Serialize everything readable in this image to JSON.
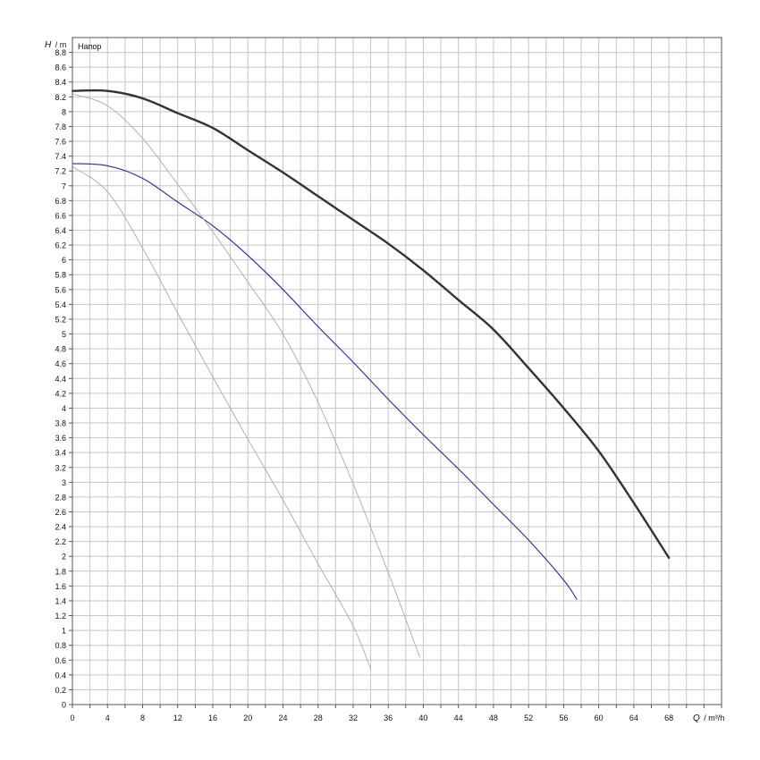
{
  "chart_data": {
    "type": "line",
    "title": "",
    "ylabel": {
      "symbol": "H",
      "unit": "/ m"
    },
    "xlabel": {
      "symbol": "Q",
      "unit": "/ m³/h"
    },
    "xlim": [
      0,
      74
    ],
    "ylim": [
      0,
      9.0
    ],
    "x_ticks": [
      0,
      4,
      8,
      12,
      16,
      20,
      24,
      28,
      32,
      36,
      40,
      44,
      48,
      52,
      56,
      60,
      64,
      68
    ],
    "x_tick_labels": [
      "0",
      "4",
      "8",
      "12",
      "16",
      "20",
      "24",
      "28",
      "32",
      "36",
      "40",
      "44",
      "48",
      "52",
      "56",
      "60",
      "64",
      "68"
    ],
    "x_minor_step": 2,
    "y_ticks": [
      0,
      0.2,
      0.4,
      0.6,
      0.8,
      1,
      1.2,
      1.4,
      1.6,
      1.8,
      2,
      2.2,
      2.4,
      2.6,
      2.8,
      3,
      3.2,
      3.4,
      3.6,
      3.8,
      4,
      4.2,
      4.4,
      4.6,
      4.8,
      5,
      5.2,
      5.4,
      5.6,
      5.8,
      6,
      6.2,
      6.4,
      6.6,
      6.8,
      7,
      7.2,
      7.4,
      7.6,
      7.8,
      8,
      8.2,
      8.4,
      8.6,
      8.8
    ],
    "y_tick_labels": [
      "0",
      "0.2",
      "0.4",
      "0.6",
      "0.8",
      "1",
      "1.2",
      "1.4",
      "1.6",
      "1.8",
      "2",
      "2.2",
      "2.4",
      "2.6",
      "2.8",
      "3",
      "3.2",
      "3.4",
      "3.6",
      "3.8",
      "4",
      "4.2",
      "4.4",
      "4.6",
      "4.8",
      "5",
      "5.2",
      "5.4",
      "5.6",
      "5.8",
      "6",
      "6.2",
      "6.4",
      "6.6",
      "6.8",
      "7",
      "7.2",
      "7.4",
      "7.6",
      "7.8",
      "8",
      "8.2",
      "8.4",
      "8.6",
      "8.8"
    ],
    "grid": true,
    "series_label_text": "Напор",
    "series": [
      {
        "key": "upper-max",
        "color": "#333333",
        "points": [
          [
            0,
            8.28
          ],
          [
            4,
            8.28
          ],
          [
            8,
            8.18
          ],
          [
            12,
            7.98
          ],
          [
            16,
            7.78
          ],
          [
            20,
            7.48
          ],
          [
            24,
            7.18
          ],
          [
            28,
            6.86
          ],
          [
            32,
            6.54
          ],
          [
            36,
            6.22
          ],
          [
            40,
            5.86
          ],
          [
            44,
            5.46
          ],
          [
            48,
            5.06
          ],
          [
            52,
            4.54
          ],
          [
            56,
            4.0
          ],
          [
            60,
            3.42
          ],
          [
            64,
            2.72
          ],
          [
            68,
            1.98
          ]
        ]
      },
      {
        "key": "lower-max",
        "color": "#2a2a8a",
        "points": [
          [
            0,
            7.3
          ],
          [
            4,
            7.27
          ],
          [
            8,
            7.1
          ],
          [
            12,
            6.78
          ],
          [
            16,
            6.46
          ],
          [
            20,
            6.06
          ],
          [
            24,
            5.6
          ],
          [
            28,
            5.1
          ],
          [
            32,
            4.62
          ],
          [
            36,
            4.12
          ],
          [
            40,
            3.64
          ],
          [
            44,
            3.18
          ],
          [
            48,
            2.7
          ],
          [
            52,
            2.22
          ],
          [
            56,
            1.68
          ],
          [
            57.5,
            1.42
          ]
        ]
      },
      {
        "key": "upper-reduced",
        "color": "#aaaaaa",
        "points": [
          [
            0,
            8.24
          ],
          [
            4,
            8.08
          ],
          [
            8,
            7.64
          ],
          [
            12,
            7.02
          ],
          [
            16,
            6.38
          ],
          [
            20,
            5.7
          ],
          [
            24,
            5.0
          ],
          [
            28,
            4.08
          ],
          [
            32,
            2.98
          ],
          [
            36,
            1.78
          ],
          [
            39.6,
            0.64
          ]
        ]
      },
      {
        "key": "lower-reduced",
        "color": "#aaaaaa",
        "points": [
          [
            0,
            7.26
          ],
          [
            4,
            6.92
          ],
          [
            8,
            6.16
          ],
          [
            12,
            5.28
          ],
          [
            16,
            4.42
          ],
          [
            20,
            3.58
          ],
          [
            24,
            2.76
          ],
          [
            28,
            1.9
          ],
          [
            32,
            1.06
          ],
          [
            34,
            0.48
          ]
        ]
      }
    ]
  }
}
